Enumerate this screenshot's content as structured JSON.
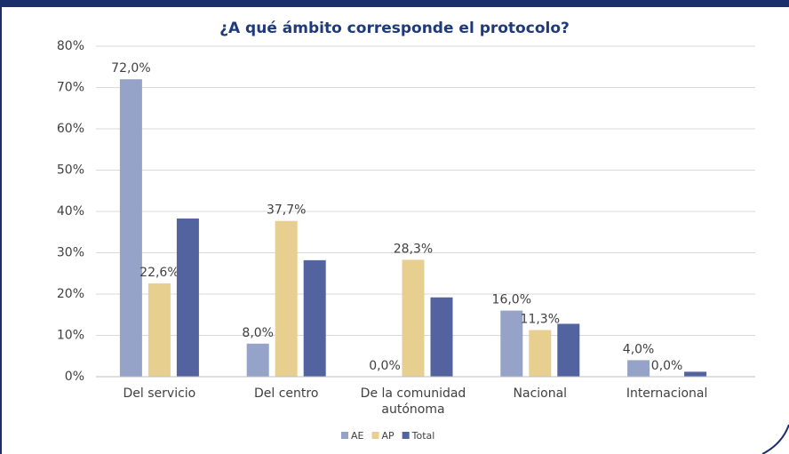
{
  "chart_data": {
    "type": "bar",
    "title": "¿A qué ámbito corresponde el protocolo?",
    "categories": [
      "Del servicio",
      "Del centro",
      "De la comunidad autónoma",
      "Nacional",
      "Internacional"
    ],
    "series": [
      {
        "name": "AE",
        "color": "#95a3c8",
        "values": [
          72,
          8,
          0,
          16,
          4
        ],
        "value_labels": [
          "72,0%",
          "8,0%",
          "0,0%",
          "16,0%",
          "4,0%"
        ]
      },
      {
        "name": "AP",
        "color": "#e6cf8f",
        "values": [
          22.6,
          37.7,
          28.3,
          11.3,
          0
        ],
        "value_labels": [
          "22,6%",
          "37,7%",
          "28,3%",
          "11,3%",
          "0,0%"
        ]
      },
      {
        "name": "Total",
        "color": "#5263a0",
        "values": [
          38.3,
          28.2,
          19.2,
          12.8,
          1.2
        ]
      }
    ],
    "ylim": [
      0,
      80
    ],
    "yticks": [
      {
        "value": 0,
        "label": "0%"
      },
      {
        "value": 10,
        "label": "10%"
      },
      {
        "value": 20,
        "label": "20%"
      },
      {
        "value": 30,
        "label": "30%"
      },
      {
        "value": 40,
        "label": "40%"
      },
      {
        "value": 50,
        "label": "50%"
      },
      {
        "value": 60,
        "label": "60%"
      },
      {
        "value": 70,
        "label": "70%"
      },
      {
        "value": 80,
        "label": "80%"
      }
    ],
    "grid": true,
    "legend": "bottom"
  }
}
